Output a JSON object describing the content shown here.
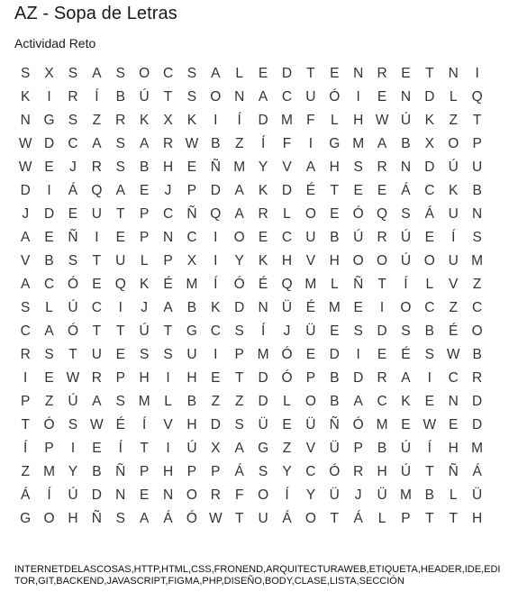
{
  "header": {
    "title": "AZ - Sopa de Letras",
    "subtitle": "Actividad Reto"
  },
  "grid": {
    "rows": [
      [
        "S",
        "X",
        "S",
        "A",
        "S",
        "O",
        "C",
        "S",
        "A",
        "L",
        "E",
        "D",
        "T",
        "E",
        "N",
        "R",
        "E",
        "T",
        "N",
        "I"
      ],
      [
        "K",
        "I",
        "R",
        "Í",
        "B",
        "Ú",
        "T",
        "S",
        "O",
        "N",
        "A",
        "C",
        "U",
        "Ó",
        "I",
        "E",
        "N",
        "D",
        "L",
        "Q"
      ],
      [
        "N",
        "G",
        "S",
        "Z",
        "R",
        "K",
        "X",
        "K",
        "I",
        "Í",
        "D",
        "M",
        "F",
        "L",
        "H",
        "W",
        "Ú",
        "K",
        "Z",
        "T"
      ],
      [
        "W",
        "D",
        "C",
        "A",
        "S",
        "A",
        "R",
        "W",
        "B",
        "Z",
        "Í",
        "F",
        "I",
        "G",
        "M",
        "A",
        "B",
        "X",
        "O",
        "P"
      ],
      [
        "W",
        "E",
        "J",
        "R",
        "S",
        "B",
        "H",
        "E",
        "Ñ",
        "M",
        "Y",
        "V",
        "A",
        "H",
        "S",
        "R",
        "N",
        "D",
        "Ú",
        "U"
      ],
      [
        "D",
        "I",
        "Á",
        "Q",
        "A",
        "E",
        "J",
        "P",
        "D",
        "A",
        "K",
        "D",
        "É",
        "T",
        "E",
        "E",
        "Á",
        "C",
        "K",
        "B"
      ],
      [
        "J",
        "D",
        "E",
        "U",
        "T",
        "P",
        "C",
        "Ñ",
        "Q",
        "A",
        "R",
        "L",
        "O",
        "E",
        "Ó",
        "Q",
        "S",
        "Á",
        "U",
        "N"
      ],
      [
        "A",
        "E",
        "Ñ",
        "I",
        "E",
        "P",
        "N",
        "C",
        "I",
        "O",
        "E",
        "C",
        "U",
        "B",
        "Ú",
        "R",
        "Ú",
        "E",
        "Í",
        "S"
      ],
      [
        "V",
        "B",
        "S",
        "T",
        "U",
        "L",
        "P",
        "X",
        "I",
        "Y",
        "K",
        "H",
        "V",
        "H",
        "O",
        "O",
        "Ú",
        "O",
        "U",
        "M"
      ],
      [
        "A",
        "C",
        "Ó",
        "E",
        "Q",
        "K",
        "É",
        "M",
        "Í",
        "Ó",
        "É",
        "Q",
        "M",
        "L",
        "Ñ",
        "T",
        "Í",
        "L",
        "V",
        "Z"
      ],
      [
        "S",
        "L",
        "Ú",
        "C",
        "I",
        "J",
        "A",
        "B",
        "K",
        "D",
        "N",
        "Ü",
        "É",
        "M",
        "E",
        "I",
        "O",
        "C",
        "Z",
        "C"
      ],
      [
        "C",
        "A",
        "Ó",
        "T",
        "T",
        "Ú",
        "T",
        "G",
        "C",
        "S",
        "Í",
        "J",
        "Ü",
        "E",
        "S",
        "D",
        "S",
        "B",
        "É",
        "O"
      ],
      [
        "R",
        "S",
        "T",
        "U",
        "E",
        "S",
        "S",
        "U",
        "I",
        "P",
        "M",
        "Ó",
        "E",
        "D",
        "I",
        "E",
        "É",
        "S",
        "W",
        "B"
      ],
      [
        "I",
        "E",
        "W",
        "R",
        "P",
        "H",
        "I",
        "H",
        "E",
        "T",
        "D",
        "Ó",
        "P",
        "B",
        "D",
        "R",
        "A",
        "I",
        "C",
        "R"
      ],
      [
        "P",
        "Z",
        "Ú",
        "A",
        "S",
        "M",
        "L",
        "B",
        "Z",
        "Z",
        "D",
        "L",
        "O",
        "B",
        "A",
        "C",
        "K",
        "E",
        "N",
        "D"
      ],
      [
        "T",
        "Ó",
        "S",
        "W",
        "É",
        "Í",
        "V",
        "H",
        "D",
        "S",
        "Ü",
        "E",
        "Ü",
        "Ñ",
        "Ó",
        "M",
        "E",
        "W",
        "E",
        "D"
      ],
      [
        "Í",
        "P",
        "I",
        "E",
        "Í",
        "T",
        "I",
        "Ú",
        "X",
        "A",
        "G",
        "Z",
        "V",
        "Ü",
        "P",
        "B",
        "Ú",
        "Í",
        "H",
        "M"
      ],
      [
        "Z",
        "M",
        "Y",
        "B",
        "Ñ",
        "P",
        "H",
        "P",
        "P",
        "Á",
        "S",
        "Y",
        "C",
        "Ó",
        "R",
        "H",
        "Ú",
        "T",
        "Ñ",
        "Á"
      ],
      [
        "Á",
        "Í",
        "Ú",
        "D",
        "N",
        "E",
        "N",
        "O",
        "R",
        "F",
        "O",
        "Í",
        "Y",
        "Ü",
        "J",
        "Ü",
        "M",
        "B",
        "L",
        "Ü"
      ],
      [
        "G",
        "O",
        "H",
        "Ñ",
        "S",
        "A",
        "Á",
        "Ó",
        "W",
        "T",
        "U",
        "Á",
        "O",
        "T",
        "Á",
        "L",
        "P",
        "T",
        "T",
        "H"
      ]
    ]
  },
  "word_list": {
    "text": "INTERNETDELASCOSAS,HTTP,HTML,CSS,FRONEND,ARQUITECTURAWEB,ETIQUETA,HEADER,IDE,EDITOR,GIT,BACKEND,JAVASCRIPT,FIGMA,PHP,DISEÑO,BODY,CLASE,LISTA,SECCIÓN"
  }
}
